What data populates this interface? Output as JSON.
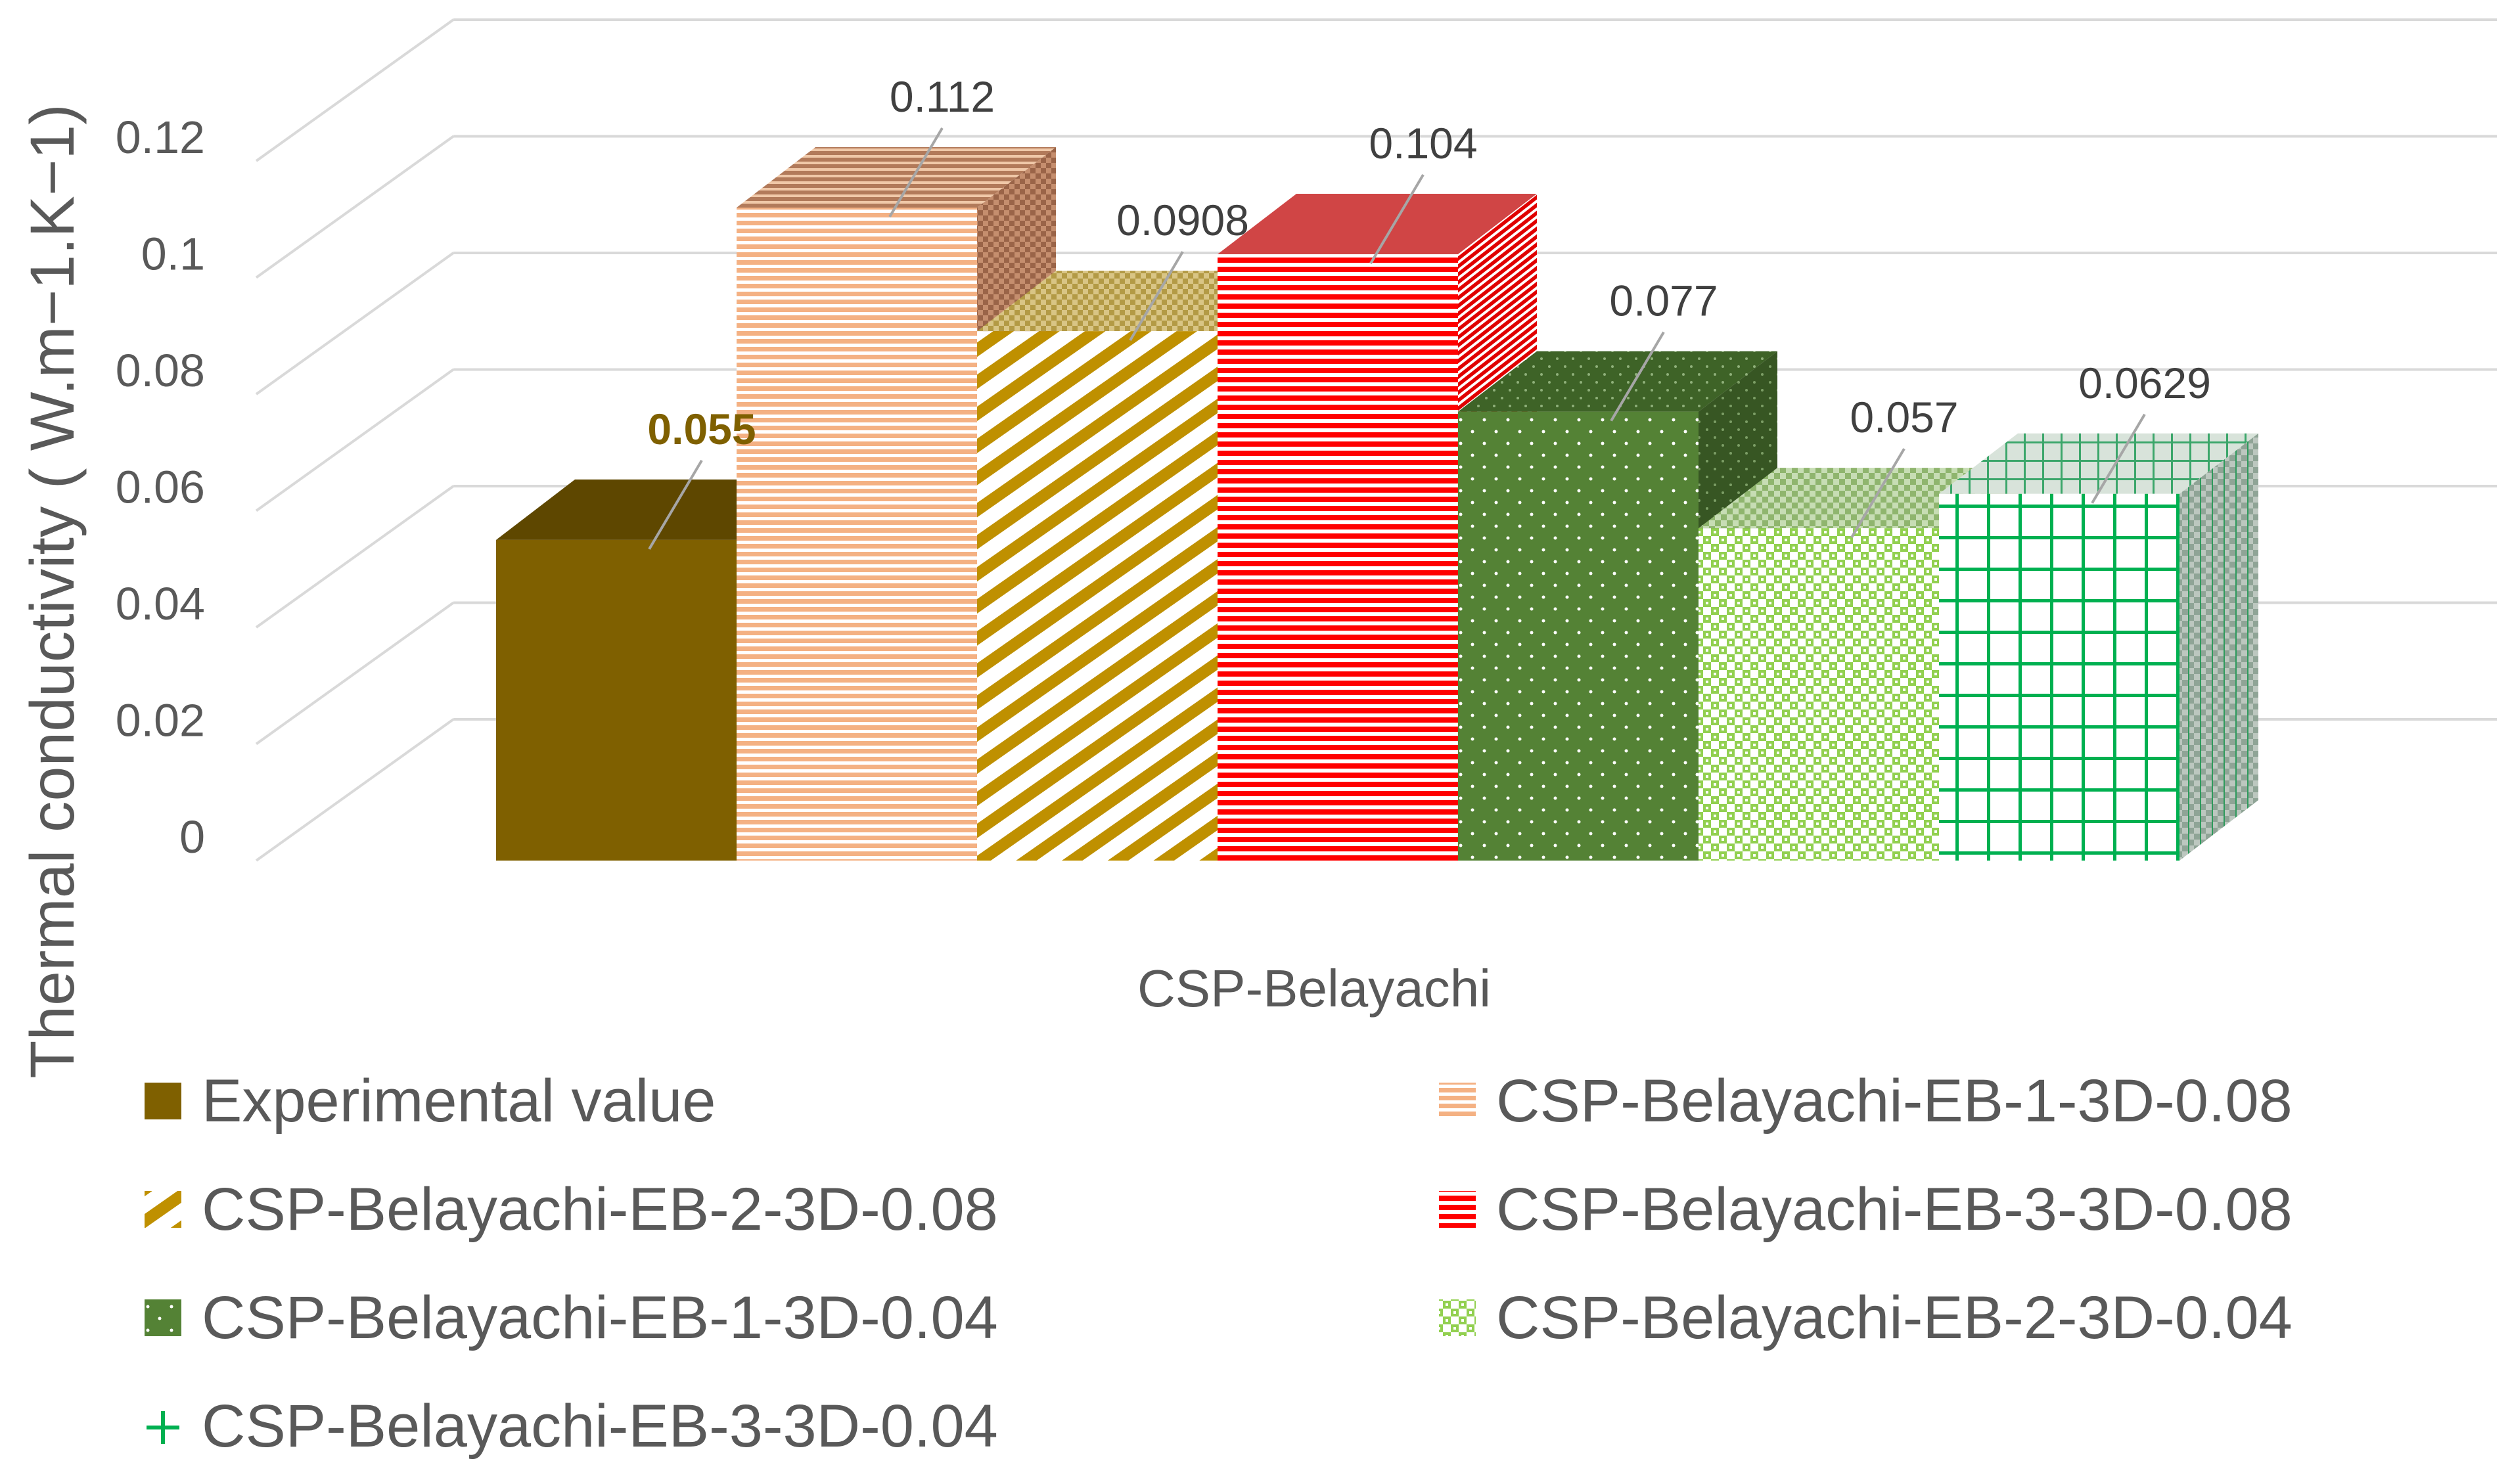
{
  "chart_data": {
    "type": "bar",
    "is_3d": true,
    "title": "",
    "xlabel": "",
    "ylabel": "Thermal conductivity ( W.m−1.K−1)",
    "category": "CSP-Belayachi",
    "ylim": [
      0,
      0.12
    ],
    "y_ticks": [
      "0",
      "0.02",
      "0.04",
      "0.06",
      "0.08",
      "0.1",
      "0.12"
    ],
    "grid": true,
    "legend_position": "bottom",
    "series": [
      {
        "name": "Experimental value",
        "value": 0.055,
        "label": "0.055",
        "color": "#7F6000",
        "pattern": "solid"
      },
      {
        "name": "CSP-Belayachi-EB-1-3D-0.08",
        "value": 0.112,
        "label": "0.112",
        "color": "#F4B183",
        "pattern": "horizontal-stripes"
      },
      {
        "name": "CSP-Belayachi-EB-2-3D-0.08",
        "value": 0.0908,
        "label": "0.0908",
        "color": "#BF9000",
        "pattern": "diagonal-stripes"
      },
      {
        "name": "CSP-Belayachi-EB-3-3D-0.08",
        "value": 0.104,
        "label": "0.104",
        "color": "#FF0000",
        "pattern": "horizontal-stripes"
      },
      {
        "name": "CSP-Belayachi-EB-1-3D-0.04",
        "value": 0.077,
        "label": "0.077",
        "color": "#548235",
        "pattern": "dots"
      },
      {
        "name": "CSP-Belayachi-EB-2-3D-0.04",
        "value": 0.057,
        "label": "0.057",
        "color": "#92D050",
        "pattern": "checker"
      },
      {
        "name": "CSP-Belayachi-EB-3-3D-0.04",
        "value": 0.0629,
        "label": "0.0629",
        "color": "#00B050",
        "pattern": "grid"
      }
    ]
  }
}
